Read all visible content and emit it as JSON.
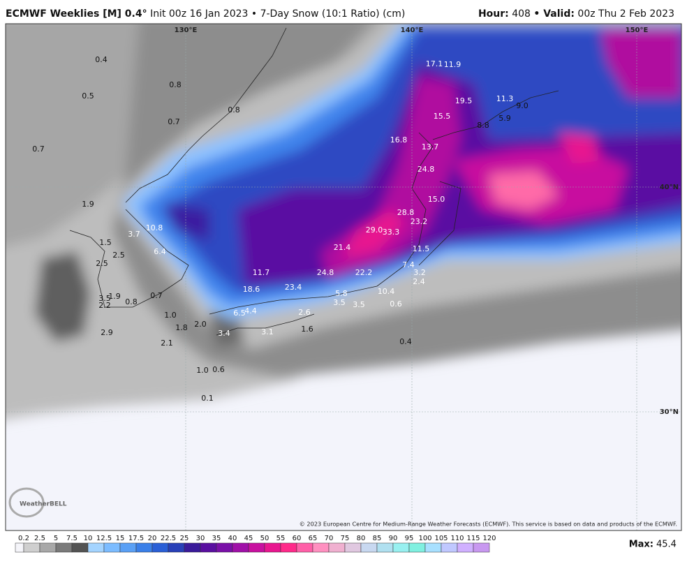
{
  "header": {
    "model": "ECMWF Weeklies [M] 0.4°",
    "subtitle": "Init 00z 16 Jan 2023 • 7-Day Snow (10:1 Ratio) (cm)",
    "hour_label": "Hour:",
    "hour": "408",
    "valid_label": "• Valid:",
    "valid": "00z Thu 2 Feb 2023"
  },
  "map": {
    "lon_labels": [
      "130°E",
      "140°E",
      "150°E"
    ],
    "lat_labels": [
      "40°N",
      "30°N"
    ],
    "labels": [
      "0.4",
      "0.8",
      "0.5",
      "0.8",
      "0.7",
      "0.7",
      "1.9",
      "10.8",
      "3.7",
      "1.5",
      "6.4",
      "2.5",
      "2.5",
      "11.7",
      "18.6",
      "23.4",
      "24.8",
      "22.2",
      "21.4",
      "29.0",
      "33.3",
      "28.8",
      "23.2",
      "15.0",
      "24.8",
      "13.7",
      "16.8",
      "15.5",
      "19.5",
      "17.1",
      "11.9",
      "11.3",
      "9.0",
      "5.9",
      "8.8",
      "11.5",
      "7.4",
      "3.2",
      "2.4",
      "10.4",
      "0.6",
      "5.8",
      "3.5",
      "3.5",
      "2.6",
      "6.5",
      "4.4",
      "1.6",
      "3.1",
      "3.4",
      "2.0",
      "1.8",
      "1.0",
      "0.7",
      "0.8",
      "1.9",
      "3.5",
      "2.2",
      "2.9",
      "2.1",
      "1.0",
      "0.6",
      "0.4",
      "0.1"
    ],
    "logo": "WeatherBELL",
    "credit": "© 2023 European Centre for Medium-Range Weather Forecasts (ECMWF). This service is based on data and products of the ECMWF."
  },
  "legend": {
    "ticks": [
      0.2,
      2.5,
      5,
      7.5,
      10,
      12.5,
      15,
      17.5,
      20,
      22.5,
      25,
      30,
      35,
      40,
      45,
      50,
      55,
      60,
      65,
      70,
      75,
      80,
      85,
      90,
      95,
      100,
      105,
      110,
      115,
      120
    ],
    "max_label": "Max:",
    "max": "45.4"
  }
}
